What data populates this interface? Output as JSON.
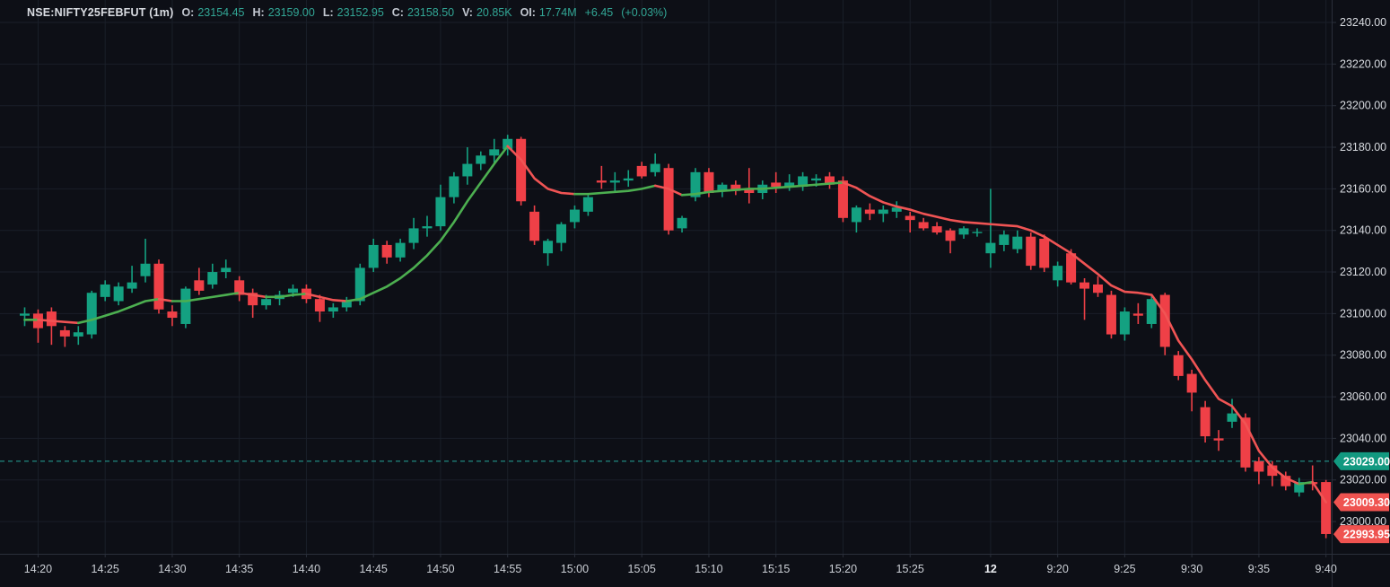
{
  "header": {
    "symbol": "NSE:NIFTY25FEBFUT (1m)",
    "o_label": "O:",
    "o": "23154.45",
    "h_label": "H:",
    "h": "23159.00",
    "l_label": "L:",
    "l": "23152.95",
    "c_label": "C:",
    "c": "23158.50",
    "v_label": "V:",
    "v": "20.85K",
    "oi_label": "OI:",
    "oi": "17.74M",
    "change": "+6.45",
    "change_pct": "(+0.03%)"
  },
  "colors": {
    "background": "#0d0f16",
    "grid": "#1a1f29",
    "axis_border": "#2a2f3a",
    "price_text": "#d8dbe0",
    "time_text": "#ccd0d6",
    "candle_up": "#14a181",
    "candle_down": "#ef4047",
    "ma_up": "#4caf50",
    "ma_down": "#f05454",
    "prev_close_line": "#26a69a",
    "badge_green": "#129980",
    "badge_red": "#ef5350",
    "badge_text": "#ffffff"
  },
  "chart_data": {
    "type": "candlestick",
    "title": "NSE:NIFTY25FEBFUT 1 minute",
    "legend_entries": [
      "price candles",
      "moving average (direction colored)"
    ],
    "grid": "on",
    "y_axis": {
      "min": 22984.5,
      "max": 23250.8,
      "tick_step": 20,
      "ticks": [
        23240,
        23220,
        23200,
        23180,
        23160,
        23140,
        23120,
        23100,
        23080,
        23060,
        23040,
        23020,
        23000
      ]
    },
    "x_ticks": [
      {
        "i": 1,
        "label": "14:20"
      },
      {
        "i": 6,
        "label": "14:25"
      },
      {
        "i": 11,
        "label": "14:30"
      },
      {
        "i": 16,
        "label": "14:35"
      },
      {
        "i": 21,
        "label": "14:40"
      },
      {
        "i": 26,
        "label": "14:45"
      },
      {
        "i": 31,
        "label": "14:50"
      },
      {
        "i": 36,
        "label": "14:55"
      },
      {
        "i": 41,
        "label": "15:00"
      },
      {
        "i": 46,
        "label": "15:05"
      },
      {
        "i": 51,
        "label": "15:10"
      },
      {
        "i": 56,
        "label": "15:15"
      },
      {
        "i": 61,
        "label": "15:20"
      },
      {
        "i": 66,
        "label": "15:25"
      },
      {
        "i": 72,
        "label": "12",
        "bold": true
      },
      {
        "i": 77,
        "label": "9:20"
      },
      {
        "i": 82,
        "label": "9:25"
      },
      {
        "i": 87,
        "label": "9:30"
      },
      {
        "i": 92,
        "label": "9:35"
      },
      {
        "i": 97,
        "label": "9:40"
      }
    ],
    "candles": [
      [
        "14:19",
        23099,
        23103,
        23094,
        23100
      ],
      [
        "14:20",
        23100,
        23102,
        23086,
        23093
      ],
      [
        "14:21",
        23101,
        23103,
        23085,
        23094
      ],
      [
        "14:22",
        23092,
        23094,
        23084,
        23089
      ],
      [
        "14:23",
        23089,
        23094,
        23085,
        23091
      ],
      [
        "14:24",
        23090,
        23111,
        23088,
        23110
      ],
      [
        "14:25",
        23108,
        23116,
        23106,
        23114
      ],
      [
        "14:26",
        23106,
        23115,
        23104,
        23113
      ],
      [
        "14:27",
        23112,
        23123,
        23110,
        23115
      ],
      [
        "14:28",
        23118,
        23136,
        23115,
        23124
      ],
      [
        "14:29",
        23124,
        23126,
        23100,
        23102
      ],
      [
        "14:30",
        23101,
        23104,
        23094,
        23098
      ],
      [
        "14:31",
        23095,
        23113,
        23093,
        23112
      ],
      [
        "14:32",
        23116,
        23122,
        23109,
        23111
      ],
      [
        "14:33",
        23114,
        23124,
        23112,
        23120
      ],
      [
        "14:34",
        23120,
        23126,
        23117,
        23122
      ],
      [
        "14:35",
        23116,
        23118,
        23106,
        23109
      ],
      [
        "14:36",
        23110,
        23112,
        23098,
        23104
      ],
      [
        "14:37",
        23104,
        23109,
        23102,
        23107
      ],
      [
        "14:38",
        23107,
        23111,
        23104,
        23109
      ],
      [
        "14:39",
        23110,
        23114,
        23108,
        23112
      ],
      [
        "14:40",
        23112,
        23114,
        23105,
        23107
      ],
      [
        "14:41",
        23107,
        23109,
        23096,
        23101
      ],
      [
        "14:42",
        23101,
        23105,
        23098,
        23103
      ],
      [
        "14:43",
        23103,
        23108,
        23101,
        23106
      ],
      [
        "14:44",
        23106,
        23124,
        23104,
        23122
      ],
      [
        "14:45",
        23122,
        23136,
        23120,
        23133
      ],
      [
        "14:46",
        23133,
        23135,
        23124,
        23127
      ],
      [
        "14:47",
        23127,
        23136,
        23125,
        23134
      ],
      [
        "14:48",
        23134,
        23146,
        23131,
        23141
      ],
      [
        "14:49",
        23141,
        23147,
        23137,
        23142
      ],
      [
        "14:50",
        23142,
        23162,
        23140,
        23156
      ],
      [
        "14:51",
        23156,
        23168,
        23153,
        23166
      ],
      [
        "14:52",
        23166,
        23180,
        23162,
        23172
      ],
      [
        "14:53",
        23172,
        23178,
        23169,
        23176
      ],
      [
        "14:54",
        23176,
        23184,
        23172,
        23179
      ],
      [
        "14:55",
        23179,
        23186,
        23176,
        23184
      ],
      [
        "14:56",
        23184,
        23185,
        23152,
        23154
      ],
      [
        "14:57",
        23149,
        23152,
        23133,
        23135
      ],
      [
        "14:58",
        23129,
        23136,
        23123,
        23135
      ],
      [
        "14:59",
        23134,
        23144,
        23130,
        23143
      ],
      [
        "15:00",
        23144,
        23152,
        23141,
        23150
      ],
      [
        "15:01",
        23149,
        23157,
        23147,
        23156
      ],
      [
        "15:02",
        23164,
        23171,
        23160,
        23163
      ],
      [
        "15:03",
        23163,
        23168,
        23159,
        23164
      ],
      [
        "15:04",
        23164,
        23169,
        23161,
        23165
      ],
      [
        "15:05",
        23171,
        23173,
        23165,
        23166
      ],
      [
        "15:06",
        23168,
        23177,
        23166,
        23172
      ],
      [
        "15:07",
        23170,
        23172,
        23138,
        23140
      ],
      [
        "15:08",
        23141,
        23147,
        23139,
        23146
      ],
      [
        "15:09",
        23156,
        23170,
        23154,
        23168
      ],
      [
        "15:10",
        23168,
        23170,
        23156,
        23158
      ],
      [
        "15:11",
        23159,
        23163,
        23156,
        23162
      ],
      [
        "15:12",
        23162,
        23164,
        23157,
        23159
      ],
      [
        "15:13",
        23160,
        23170,
        23153,
        23158
      ],
      [
        "15:14",
        23158,
        23164,
        23155,
        23162
      ],
      [
        "15:15",
        23163,
        23168,
        23158,
        23161
      ],
      [
        "15:16",
        23161,
        23167,
        23159,
        23163
      ],
      [
        "15:17",
        23161,
        23168,
        23159,
        23166
      ],
      [
        "15:18",
        23164,
        23167,
        23161,
        23165
      ],
      [
        "15:19",
        23166,
        23168,
        23160,
        23162
      ],
      [
        "15:20",
        23164,
        23166,
        23144,
        23146
      ],
      [
        "15:21",
        23144,
        23152,
        23139,
        23151
      ],
      [
        "15:22",
        23150,
        23153,
        23145,
        23148
      ],
      [
        "15:23",
        23148,
        23152,
        23144,
        23150
      ],
      [
        "15:24",
        23149,
        23154,
        23146,
        23151
      ],
      [
        "15:25",
        23147,
        23149,
        23139,
        23145
      ],
      [
        "15:26",
        23144,
        23146,
        23140,
        23141
      ],
      [
        "15:27",
        23142,
        23144,
        23138,
        23139
      ],
      [
        "15:28",
        23140,
        23141,
        23129,
        23135
      ],
      [
        "15:29",
        23138,
        23142,
        23136,
        23141
      ],
      [
        "15:30",
        23139,
        23141,
        23137,
        23139
      ],
      [
        "9:15",
        23129,
        23160,
        23122,
        23134
      ],
      [
        "9:16",
        23133,
        23140,
        23130,
        23138
      ],
      [
        "9:17",
        23131,
        23140,
        23129,
        23137
      ],
      [
        "9:18",
        23137,
        23139,
        23121,
        23123
      ],
      [
        "9:19",
        23136,
        23138,
        23120,
        23122
      ],
      [
        "9:20",
        23116,
        23125,
        23113,
        23123
      ],
      [
        "9:21",
        23129,
        23131,
        23114,
        23115
      ],
      [
        "9:22",
        23115,
        23117,
        23097,
        23112
      ],
      [
        "9:23",
        23114,
        23118,
        23108,
        23110
      ],
      [
        "9:24",
        23109,
        23111,
        23088,
        23090
      ],
      [
        "9:25",
        23090,
        23103,
        23087,
        23101
      ],
      [
        "9:26",
        23100,
        23105,
        23095,
        23099
      ],
      [
        "9:27",
        23095,
        23109,
        23093,
        23107
      ],
      [
        "9:28",
        23109,
        23110,
        23080,
        23084
      ],
      [
        "9:29",
        23080,
        23082,
        23068,
        23070
      ],
      [
        "9:30",
        23071,
        23073,
        23053,
        23062
      ],
      [
        "9:31",
        23055,
        23058,
        23038,
        23041
      ],
      [
        "9:32",
        23040,
        23044,
        23034,
        23039
      ],
      [
        "9:33",
        23048,
        23059,
        23045,
        23052
      ],
      [
        "9:34",
        23050,
        23052,
        23024,
        23026
      ],
      [
        "9:35",
        23029,
        23031,
        23018,
        23024
      ],
      [
        "9:36",
        23027,
        23029,
        23017,
        23022
      ],
      [
        "9:37",
        23022,
        23024,
        23015,
        23017
      ],
      [
        "9:38",
        23014,
        23021,
        23012,
        23019
      ],
      [
        "9:39",
        23019,
        23027,
        23015,
        23018
      ],
      [
        "9:40",
        23019,
        23020,
        22992,
        22994
      ]
    ],
    "ma": [
      23097,
      23097,
      23096.5,
      23096,
      23095.5,
      23097,
      23099,
      23101,
      23103.5,
      23106,
      23107,
      23106,
      23106,
      23107,
      23108,
      23109,
      23110,
      23109,
      23108,
      23108,
      23109,
      23109.5,
      23108,
      23106.5,
      23106,
      23107,
      23110,
      23113,
      23117,
      23122,
      23128,
      23135,
      23144,
      23154,
      23163,
      23172,
      23180.5,
      23174,
      23165,
      23160,
      23158,
      23157.5,
      23157.5,
      23158,
      23158.5,
      23159,
      23160,
      23161.5,
      23160,
      23157,
      23157.5,
      23158.5,
      23159,
      23159.5,
      23160,
      23160,
      23160.5,
      23161,
      23161.5,
      23162,
      23162.5,
      23163,
      23160.5,
      23156.5,
      23153.5,
      23151.5,
      23150,
      23148,
      23146.5,
      23145,
      23144,
      23143.5,
      23143,
      23142.5,
      23142,
      23140,
      23137,
      23133,
      23129,
      23124,
      23119,
      23113.5,
      23110.5,
      23110,
      23109,
      23100,
      23087,
      23078,
      23068,
      23059,
      23055.5,
      23047,
      23034,
      23026,
      23021,
      23018,
      23019,
      23009.3
    ],
    "prev_close_line": {
      "value": 23029.0,
      "label": "23029.00",
      "style": "dashed"
    },
    "price_badges": [
      {
        "value": 23029.0,
        "label": "23029.00",
        "color_key": "badge_green",
        "name": "prev-close-badge"
      },
      {
        "value": 23009.3,
        "label": "23009.30",
        "color_key": "badge_red",
        "name": "ma-value-badge"
      },
      {
        "value": 22993.95,
        "label": "22993.95",
        "color_key": "badge_red",
        "name": "last-price-badge"
      }
    ]
  }
}
